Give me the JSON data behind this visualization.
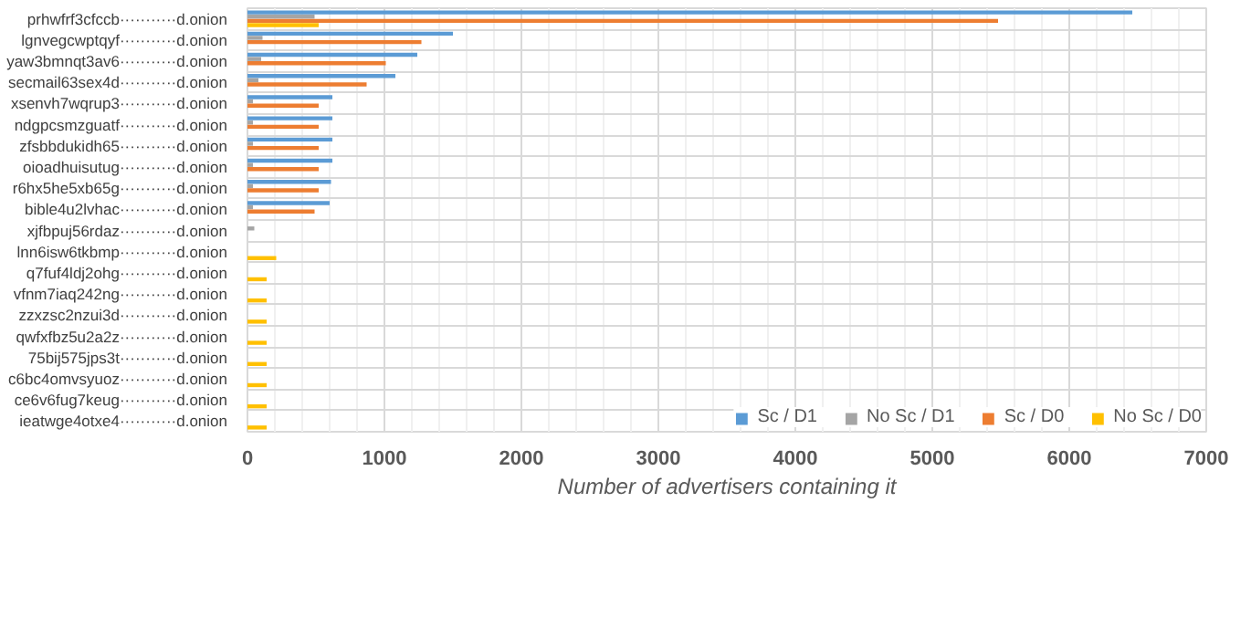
{
  "chart_data": {
    "type": "bar",
    "orientation": "horizontal",
    "xlabel": "Number of advertisers containing it",
    "categories": [
      "prhwfrf3cfccb···········d.onion",
      "lgnvegcwptqyf···········d.onion",
      "yaw3bmnqt3av6···········d.onion",
      "secmail63sex4d···········d.onion",
      "xsenvh7wqrup3···········d.onion",
      "ndgpcsmzguatf···········d.onion",
      "zfsbbdukidh65···········d.onion",
      "oioadhuisutug···········d.onion",
      "r6hx5he5xb65g···········d.onion",
      "bible4u2lvhac···········d.onion",
      "xjfbpuj56rdaz···········d.onion",
      "lnn6isw6tkbmp···········d.onion",
      "q7fuf4ldj2ohg···········d.onion",
      "vfnm7iaq242ng···········d.onion",
      "zzxzsc2nzui3d···········d.onion",
      "qwfxfbz5u2a2z···········d.onion",
      "75bij575jps3t···········d.onion",
      "c6bc4omvsyuoz···········d.onion",
      "ce6v6fug7keug···········d.onion",
      "ieatwge4otxe4···········d.onion"
    ],
    "series": [
      {
        "name": "Sc / D1",
        "color": "#5b9bd5",
        "values": [
          6460,
          1500,
          1240,
          1080,
          620,
          620,
          620,
          620,
          610,
          600,
          null,
          null,
          null,
          null,
          null,
          null,
          null,
          null,
          null,
          null
        ]
      },
      {
        "name": "No Sc / D1",
        "color": "#a5a5a5",
        "values": [
          490,
          110,
          100,
          80,
          40,
          40,
          40,
          40,
          40,
          40,
          50,
          null,
          null,
          null,
          null,
          null,
          null,
          null,
          null,
          null
        ]
      },
      {
        "name": "Sc / D0",
        "color": "#ed7d31",
        "values": [
          5480,
          1270,
          1010,
          870,
          520,
          520,
          520,
          520,
          520,
          490,
          null,
          null,
          null,
          null,
          null,
          null,
          null,
          null,
          null,
          null
        ]
      },
      {
        "name": "No Sc / D0",
        "color": "#ffc000",
        "values": [
          520,
          null,
          null,
          null,
          null,
          null,
          null,
          null,
          null,
          null,
          null,
          210,
          140,
          140,
          140,
          140,
          140,
          140,
          140,
          140
        ]
      }
    ],
    "xlim": [
      0,
      7000
    ],
    "xticks": [
      0,
      1000,
      2000,
      3000,
      4000,
      5000,
      6000,
      7000
    ],
    "grid": true,
    "legend": "bottom right"
  }
}
